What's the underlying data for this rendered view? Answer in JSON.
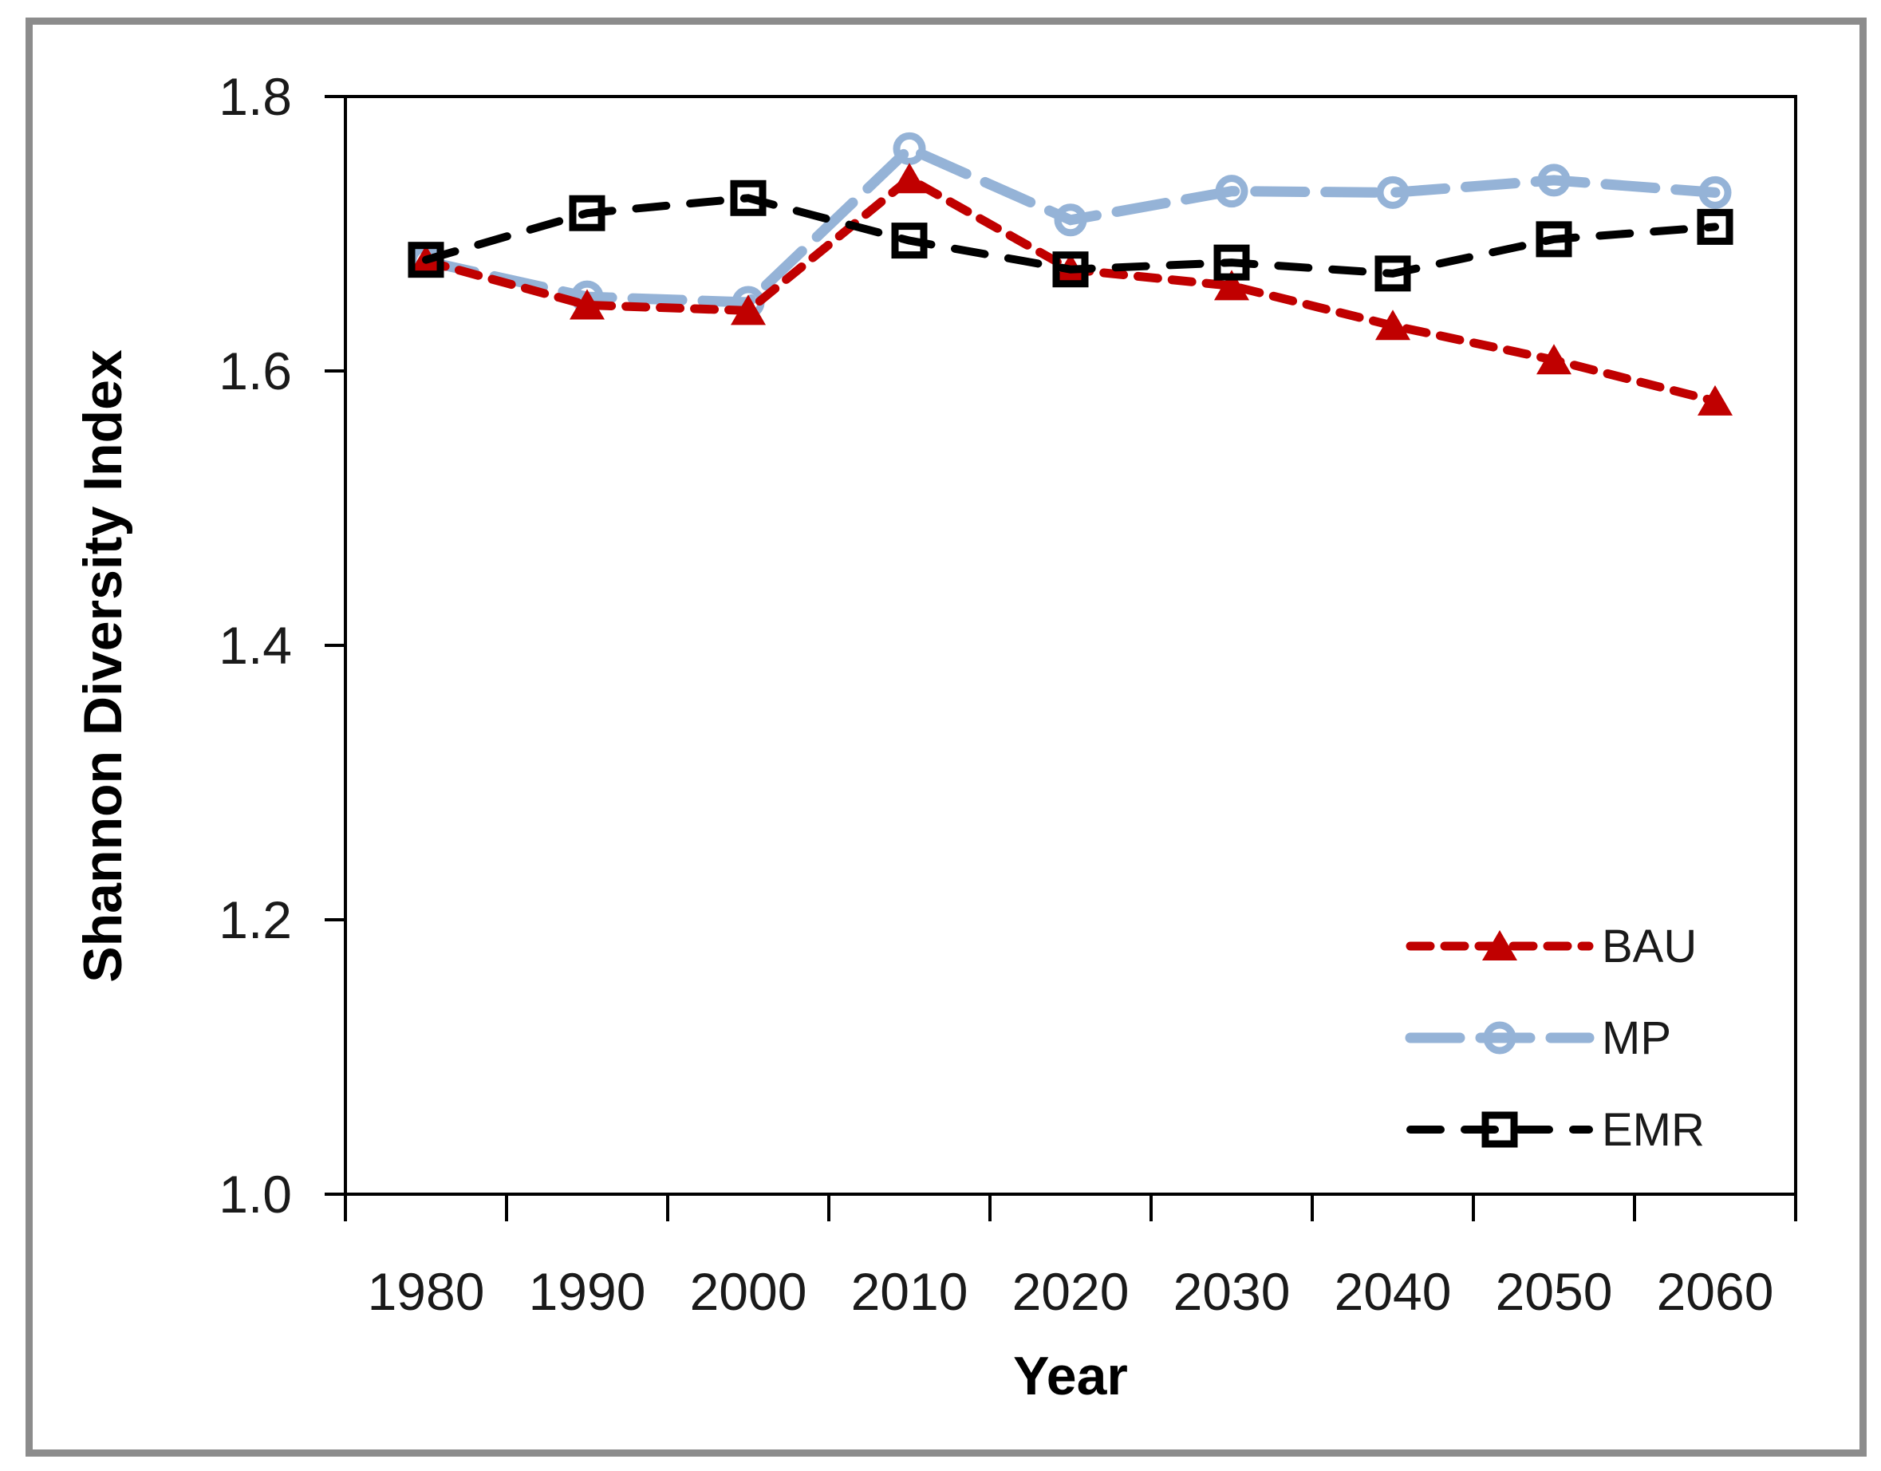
{
  "chart_data": {
    "type": "line",
    "title": "",
    "xlabel": "Year",
    "ylabel": "Shannon Diversity Index",
    "categories": [
      "1980",
      "1990",
      "2000",
      "2010",
      "2020",
      "2030",
      "2040",
      "2050",
      "2060"
    ],
    "ylim": [
      1.0,
      1.8
    ],
    "yticks": [
      "1.0",
      "1.2",
      "1.4",
      "1.6",
      "1.8"
    ],
    "grid": false,
    "legend_position": "inside-right",
    "text_color": "#1A1A1A",
    "axis_color": "#000000",
    "frame_color": "#8C8C8C",
    "series": [
      {
        "name": "BAU",
        "color": "#C00000",
        "line_style": "dashed",
        "marker": "triangle-filled",
        "values": [
          1.68,
          1.648,
          1.644,
          1.74,
          1.674,
          1.662,
          1.633,
          1.608,
          1.578
        ]
      },
      {
        "name": "MP",
        "color": "#95B3D7",
        "line_style": "long-dash",
        "marker": "circle-open",
        "values": [
          1.68,
          1.654,
          1.65,
          1.762,
          1.71,
          1.731,
          1.73,
          1.739,
          1.73
        ]
      },
      {
        "name": "EMR",
        "color": "#000000",
        "line_style": "long-dash-sparse",
        "marker": "square-open",
        "values": [
          1.681,
          1.715,
          1.726,
          1.695,
          1.674,
          1.679,
          1.671,
          1.696,
          1.705
        ]
      }
    ]
  }
}
